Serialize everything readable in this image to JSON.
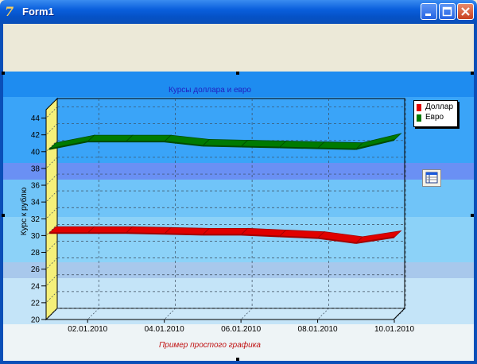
{
  "window": {
    "title": "Form1",
    "app_icon": "delphi-icon"
  },
  "titlebar_buttons": {
    "minimize_icon": "minimize-icon",
    "maximize_icon": "maximize-icon",
    "close_icon": "close-icon"
  },
  "chart_data": {
    "type": "line",
    "title": "Курсы доллара и евро",
    "footer": "Пример простого графика",
    "ylabel": "Курс к рублю",
    "xlabel": "",
    "ylim": [
      20,
      45
    ],
    "y_ticks": [
      "20",
      "22",
      "24",
      "26",
      "28",
      "30",
      "32",
      "34",
      "36",
      "38",
      "40",
      "42",
      "44"
    ],
    "x_tick_labels": [
      "02.01.2010",
      "04.01.2010",
      "06.01.2010",
      "08.01.2010",
      "10.01.2010"
    ],
    "x": [
      "01.01.2010",
      "02.01.2010",
      "03.01.2010",
      "04.01.2010",
      "05.01.2010",
      "06.01.2010",
      "07.01.2010",
      "08.01.2010",
      "09.01.2010",
      "10.01.2010"
    ],
    "series": [
      {
        "name": "Доллар",
        "color": "#e00000",
        "values": [
          30.3,
          30.3,
          30.3,
          30.2,
          30.1,
          30.1,
          29.9,
          29.7,
          29.1,
          29.8
        ]
      },
      {
        "name": "Евро",
        "color": "#007a00",
        "values": [
          40.3,
          41.2,
          41.2,
          41.2,
          40.7,
          40.6,
          40.5,
          40.4,
          40.3,
          41.4
        ]
      }
    ],
    "grid": true,
    "legend_position": "top-right",
    "background_bands": [
      "#a8d8f4",
      "#8fc8f4",
      "#78b8f4",
      "#5aa8f4",
      "#6a8cf4"
    ],
    "wall_color": "#f5f07a"
  },
  "toolbar": {
    "chart_editor_icon": "chart-editor-icon"
  }
}
